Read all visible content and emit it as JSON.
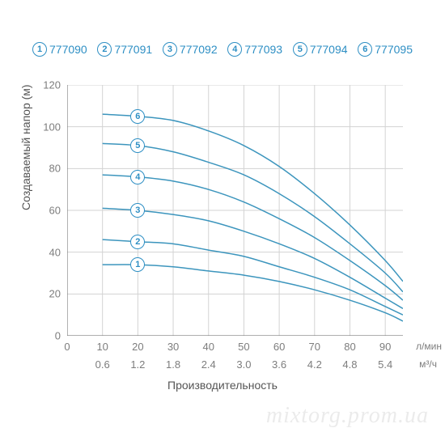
{
  "legend": [
    {
      "num": "1",
      "label": "777090"
    },
    {
      "num": "2",
      "label": "777091"
    },
    {
      "num": "3",
      "label": "777092"
    },
    {
      "num": "4",
      "label": "777093"
    },
    {
      "num": "5",
      "label": "777094"
    },
    {
      "num": "6",
      "label": "777095"
    }
  ],
  "chart": {
    "type": "line",
    "y_axis_title": "Создаваемый напор (м)",
    "x_axis_title": "Производительность",
    "x_unit_1": "л/мин",
    "x_unit_2": "м³/ч",
    "xlim": [
      0,
      95
    ],
    "ylim": [
      0,
      120
    ],
    "x_ticks": [
      0,
      10,
      20,
      30,
      40,
      50,
      60,
      70,
      80,
      90
    ],
    "y_ticks": [
      0,
      20,
      40,
      60,
      80,
      100,
      120
    ],
    "x2_ticks": [
      "0.6",
      "1.2",
      "1.8",
      "2.4",
      "3.0",
      "3.6",
      "4.2",
      "4.8",
      "5.4"
    ],
    "x2_positions": [
      10,
      20,
      30,
      40,
      50,
      60,
      70,
      80,
      90
    ],
    "grid_color": "#d3d3d3",
    "axis_color": "#7d7d7d",
    "curve_color": "#3c95bd",
    "curve_width": 1.5,
    "label_fontsize": 13,
    "title_fontsize": 14,
    "curves": [
      {
        "id": "1",
        "label_x": 20,
        "points": [
          [
            10,
            34
          ],
          [
            20,
            34
          ],
          [
            30,
            33
          ],
          [
            40,
            31
          ],
          [
            50,
            29
          ],
          [
            60,
            26
          ],
          [
            70,
            22
          ],
          [
            80,
            17
          ],
          [
            90,
            11
          ],
          [
            95,
            7
          ]
        ]
      },
      {
        "id": "2",
        "label_x": 20,
        "points": [
          [
            10,
            46
          ],
          [
            20,
            45
          ],
          [
            30,
            44
          ],
          [
            40,
            41
          ],
          [
            50,
            38
          ],
          [
            60,
            33
          ],
          [
            70,
            28
          ],
          [
            80,
            22
          ],
          [
            90,
            14
          ],
          [
            95,
            10
          ]
        ]
      },
      {
        "id": "3",
        "label_x": 20,
        "points": [
          [
            10,
            61
          ],
          [
            20,
            60
          ],
          [
            30,
            58
          ],
          [
            40,
            55
          ],
          [
            50,
            50
          ],
          [
            60,
            44
          ],
          [
            70,
            37
          ],
          [
            80,
            28
          ],
          [
            90,
            18
          ],
          [
            95,
            13
          ]
        ]
      },
      {
        "id": "4",
        "label_x": 20,
        "points": [
          [
            10,
            77
          ],
          [
            20,
            76
          ],
          [
            30,
            74
          ],
          [
            40,
            70
          ],
          [
            50,
            64
          ],
          [
            60,
            56
          ],
          [
            70,
            47
          ],
          [
            80,
            36
          ],
          [
            90,
            24
          ],
          [
            95,
            17
          ]
        ]
      },
      {
        "id": "5",
        "label_x": 20,
        "points": [
          [
            10,
            92
          ],
          [
            20,
            91
          ],
          [
            30,
            88
          ],
          [
            40,
            83
          ],
          [
            50,
            77
          ],
          [
            60,
            68
          ],
          [
            70,
            57
          ],
          [
            80,
            44
          ],
          [
            90,
            30
          ],
          [
            95,
            21
          ]
        ]
      },
      {
        "id": "6",
        "label_x": 20,
        "points": [
          [
            10,
            106
          ],
          [
            20,
            105
          ],
          [
            30,
            103
          ],
          [
            40,
            98
          ],
          [
            50,
            91
          ],
          [
            60,
            81
          ],
          [
            70,
            68
          ],
          [
            80,
            53
          ],
          [
            90,
            36
          ],
          [
            95,
            26
          ]
        ]
      }
    ]
  },
  "watermark": "mixtorg.prom.ua"
}
